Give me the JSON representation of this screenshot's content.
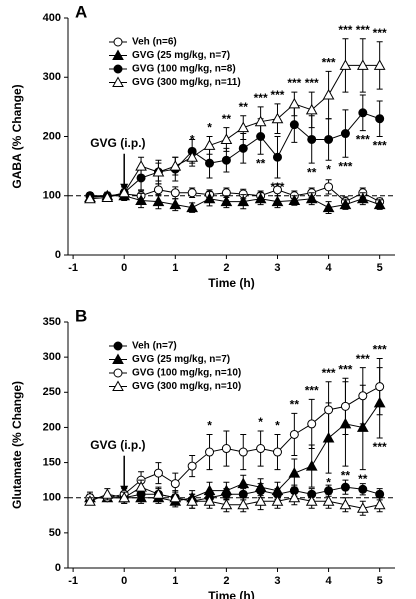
{
  "chart_data": [
    {
      "type": "line",
      "panel_label": "A",
      "xlabel": "Time (h)",
      "ylabel": "GABA (% Change)",
      "x": [
        -0.67,
        -0.33,
        0,
        0.33,
        0.67,
        1,
        1.33,
        1.67,
        2,
        2.33,
        2.67,
        3,
        3.33,
        3.67,
        4,
        4.33,
        4.67,
        5
      ],
      "xlim": [
        -1.1,
        5.3
      ],
      "xticks": [
        -1,
        0,
        1,
        2,
        3,
        4,
        5
      ],
      "ylim": [
        0,
        400
      ],
      "yticks": [
        0,
        100,
        200,
        300,
        400
      ],
      "hline": 100,
      "legend": "upper left",
      "annotation": {
        "text": "GVG (i.p.)",
        "x": 0
      },
      "series": [
        {
          "name": "Veh (n=6)",
          "color": "#000000",
          "marker": "circle",
          "filled": false,
          "values": [
            100,
            100,
            103,
            100,
            110,
            105,
            105,
            102,
            105,
            103,
            100,
            110,
            100,
            105,
            115,
            90,
            105,
            90
          ],
          "errors": [
            5,
            5,
            8,
            8,
            10,
            10,
            8,
            8,
            8,
            8,
            8,
            10,
            8,
            8,
            12,
            8,
            8,
            6
          ]
        },
        {
          "name": "GVG (25 mg/kg, n=7)",
          "color": "#000000",
          "marker": "triangle",
          "filled": true,
          "values": [
            97,
            100,
            100,
            92,
            90,
            85,
            80,
            95,
            90,
            90,
            95,
            90,
            92,
            95,
            80,
            85,
            95,
            85
          ],
          "errors": [
            8,
            6,
            8,
            12,
            12,
            10,
            8,
            12,
            10,
            12,
            10,
            10,
            8,
            10,
            10,
            8,
            10,
            8
          ]
        },
        {
          "name": "GVG (100 mg/kg, n=8)",
          "color": "#000000",
          "marker": "circle",
          "filled": true,
          "values": [
            100,
            98,
            105,
            130,
            140,
            145,
            175,
            155,
            160,
            180,
            200,
            165,
            220,
            195,
            195,
            205,
            240,
            230
          ],
          "errors": [
            5,
            5,
            10,
            20,
            20,
            20,
            20,
            25,
            20,
            25,
            30,
            35,
            30,
            40,
            35,
            40,
            30,
            30
          ],
          "significance_side": "below",
          "significance": [
            null,
            null,
            null,
            null,
            null,
            null,
            null,
            null,
            null,
            null,
            "**",
            "***",
            null,
            "**",
            "*",
            "***",
            "***",
            "***"
          ]
        },
        {
          "name": "GVG (300 mg/kg, n=11)",
          "color": "#000000",
          "marker": "triangle",
          "filled": false,
          "values": [
            95,
            97,
            105,
            150,
            140,
            150,
            165,
            185,
            195,
            215,
            225,
            230,
            255,
            245,
            270,
            320,
            320,
            320
          ],
          "errors": [
            5,
            5,
            10,
            15,
            15,
            15,
            15,
            15,
            20,
            20,
            25,
            25,
            20,
            30,
            40,
            45,
            45,
            40
          ],
          "significance_side": "above",
          "significance": [
            null,
            null,
            null,
            null,
            null,
            null,
            "*",
            "*",
            "**",
            "**",
            "***",
            "***",
            "***",
            "***",
            "***",
            "***",
            "***",
            "***"
          ]
        }
      ]
    },
    {
      "type": "line",
      "panel_label": "B",
      "xlabel": "Time (h)",
      "ylabel": "Glutamate (% Change)",
      "x": [
        -0.67,
        -0.33,
        0,
        0.33,
        0.67,
        1,
        1.33,
        1.67,
        2,
        2.33,
        2.67,
        3,
        3.33,
        3.67,
        4,
        4.33,
        4.67,
        5
      ],
      "xlim": [
        -1.1,
        5.3
      ],
      "xticks": [
        -1,
        0,
        1,
        2,
        3,
        4,
        5
      ],
      "ylim": [
        0,
        350
      ],
      "yticks": [
        0,
        50,
        100,
        150,
        200,
        250,
        300,
        350
      ],
      "hline": 100,
      "legend": "upper left",
      "annotation": {
        "text": "GVG (i.p.)",
        "x": 0
      },
      "series": [
        {
          "name": "Veh (n=7)",
          "color": "#000000",
          "marker": "circle",
          "filled": true,
          "values": [
            100,
            100,
            100,
            105,
            105,
            100,
            95,
            100,
            105,
            105,
            110,
            105,
            110,
            105,
            110,
            115,
            112,
            105
          ],
          "errors": [
            8,
            5,
            5,
            10,
            8,
            8,
            10,
            8,
            8,
            8,
            10,
            8,
            8,
            8,
            8,
            10,
            8,
            8
          ]
        },
        {
          "name": "GVG (25 mg/kg, n=7)",
          "color": "#000000",
          "marker": "triangle",
          "filled": true,
          "values": [
            100,
            100,
            100,
            100,
            100,
            95,
            100,
            110,
            110,
            120,
            115,
            110,
            135,
            145,
            185,
            205,
            200,
            235
          ],
          "errors": [
            5,
            5,
            8,
            8,
            8,
            8,
            10,
            12,
            12,
            12,
            12,
            12,
            20,
            30,
            50,
            60,
            60,
            50
          ],
          "significance_side": "below",
          "significance": [
            null,
            null,
            null,
            null,
            null,
            null,
            null,
            null,
            null,
            null,
            null,
            null,
            null,
            null,
            "*",
            "**",
            "**",
            "***"
          ]
        },
        {
          "name": "GVG (100 mg/kg, n=10)",
          "color": "#000000",
          "marker": "circle",
          "filled": false,
          "values": [
            100,
            100,
            105,
            125,
            135,
            120,
            145,
            165,
            170,
            165,
            170,
            165,
            190,
            205,
            225,
            230,
            245,
            258
          ],
          "errors": [
            5,
            5,
            8,
            12,
            15,
            15,
            15,
            25,
            25,
            25,
            25,
            25,
            30,
            35,
            40,
            40,
            40,
            40
          ],
          "significance_side": "above",
          "significance": [
            null,
            null,
            null,
            null,
            null,
            null,
            null,
            "*",
            null,
            null,
            "*",
            "*",
            "**",
            "***",
            "***",
            "***",
            "***",
            "***"
          ]
        },
        {
          "name": "GVG (300 mg/kg, n=10)",
          "color": "#000000",
          "marker": "triangle",
          "filled": false,
          "values": [
            95,
            105,
            100,
            115,
            105,
            100,
            95,
            95,
            90,
            90,
            95,
            95,
            100,
            95,
            95,
            90,
            85,
            90
          ],
          "errors": [
            5,
            8,
            8,
            10,
            10,
            10,
            10,
            10,
            10,
            10,
            12,
            10,
            10,
            10,
            10,
            10,
            10,
            10
          ]
        }
      ]
    }
  ]
}
